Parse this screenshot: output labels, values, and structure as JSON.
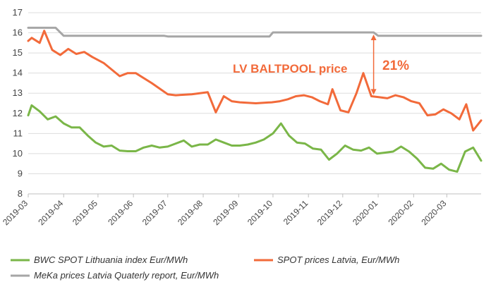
{
  "chart_data": {
    "type": "line",
    "title": "",
    "xlabel": "",
    "ylabel": "",
    "ylim": [
      8,
      17
    ],
    "yticks": [
      "8",
      "9",
      "10",
      "11",
      "12",
      "13",
      "14",
      "15",
      "16",
      "17"
    ],
    "xticks": [
      "2019-03",
      "2019-04",
      "2019-05",
      "2019-06",
      "2019-07",
      "2019-08",
      "2019-09",
      "2019-10",
      "2019-11",
      "2019-12",
      "2020-01",
      "2020-02",
      "2020-03"
    ],
    "xlim": [
      "2019-03-01",
      "2020-03-31"
    ],
    "grid": "horizontal",
    "legend_placement": "bottom",
    "series": [
      {
        "name": "BWC SPOT Lithuania index Eur/MWh",
        "color": "#7ab648",
        "points": [
          [
            "2019-03-01",
            11.9
          ],
          [
            "2019-03-04",
            12.4
          ],
          [
            "2019-03-11",
            12.1
          ],
          [
            "2019-03-18",
            11.7
          ],
          [
            "2019-03-25",
            11.85
          ],
          [
            "2019-04-01",
            11.5
          ],
          [
            "2019-04-08",
            11.3
          ],
          [
            "2019-04-15",
            11.3
          ],
          [
            "2019-04-22",
            10.9
          ],
          [
            "2019-04-29",
            10.55
          ],
          [
            "2019-05-06",
            10.35
          ],
          [
            "2019-05-13",
            10.4
          ],
          [
            "2019-05-20",
            10.15
          ],
          [
            "2019-05-27",
            10.12
          ],
          [
            "2019-06-03",
            10.12
          ],
          [
            "2019-06-10",
            10.3
          ],
          [
            "2019-06-17",
            10.4
          ],
          [
            "2019-06-24",
            10.3
          ],
          [
            "2019-07-01",
            10.35
          ],
          [
            "2019-07-08",
            10.5
          ],
          [
            "2019-07-15",
            10.65
          ],
          [
            "2019-07-22",
            10.35
          ],
          [
            "2019-07-29",
            10.45
          ],
          [
            "2019-08-05",
            10.45
          ],
          [
            "2019-08-12",
            10.7
          ],
          [
            "2019-08-19",
            10.55
          ],
          [
            "2019-08-26",
            10.4
          ],
          [
            "2019-09-02",
            10.4
          ],
          [
            "2019-09-09",
            10.45
          ],
          [
            "2019-09-16",
            10.55
          ],
          [
            "2019-09-23",
            10.7
          ],
          [
            "2019-10-01",
            11.0
          ],
          [
            "2019-10-08",
            11.5
          ],
          [
            "2019-10-15",
            10.9
          ],
          [
            "2019-10-22",
            10.55
          ],
          [
            "2019-10-29",
            10.5
          ],
          [
            "2019-11-05",
            10.25
          ],
          [
            "2019-11-12",
            10.2
          ],
          [
            "2019-11-19",
            9.7
          ],
          [
            "2019-11-26",
            10.0
          ],
          [
            "2019-12-03",
            10.4
          ],
          [
            "2019-12-10",
            10.2
          ],
          [
            "2019-12-17",
            10.15
          ],
          [
            "2019-12-24",
            10.3
          ],
          [
            "2019-12-31",
            10.0
          ],
          [
            "2020-01-07",
            10.05
          ],
          [
            "2020-01-14",
            10.1
          ],
          [
            "2020-01-21",
            10.35
          ],
          [
            "2020-01-28",
            10.1
          ],
          [
            "2020-02-04",
            9.75
          ],
          [
            "2020-02-11",
            9.3
          ],
          [
            "2020-02-18",
            9.25
          ],
          [
            "2020-02-25",
            9.5
          ],
          [
            "2020-03-03",
            9.2
          ],
          [
            "2020-03-10",
            9.1
          ],
          [
            "2020-03-17",
            10.1
          ],
          [
            "2020-03-24",
            10.3
          ],
          [
            "2020-03-31",
            9.65
          ]
        ]
      },
      {
        "name": "SPOT prices Latvia, Eur/MWh",
        "color": "#f26a3a",
        "points": [
          [
            "2019-03-01",
            15.6
          ],
          [
            "2019-03-04",
            15.75
          ],
          [
            "2019-03-11",
            15.5
          ],
          [
            "2019-03-15",
            16.1
          ],
          [
            "2019-03-22",
            15.15
          ],
          [
            "2019-03-29",
            14.9
          ],
          [
            "2019-04-05",
            15.2
          ],
          [
            "2019-04-12",
            14.95
          ],
          [
            "2019-04-19",
            15.05
          ],
          [
            "2019-04-26",
            14.8
          ],
          [
            "2019-05-06",
            14.5
          ],
          [
            "2019-05-20",
            13.85
          ],
          [
            "2019-05-27",
            14.0
          ],
          [
            "2019-06-03",
            14.0
          ],
          [
            "2019-06-17",
            13.5
          ],
          [
            "2019-07-01",
            12.95
          ],
          [
            "2019-07-08",
            12.9
          ],
          [
            "2019-07-22",
            12.95
          ],
          [
            "2019-08-05",
            13.05
          ],
          [
            "2019-08-12",
            12.05
          ],
          [
            "2019-08-19",
            12.85
          ],
          [
            "2019-08-26",
            12.6
          ],
          [
            "2019-09-02",
            12.55
          ],
          [
            "2019-09-16",
            12.5
          ],
          [
            "2019-09-30",
            12.55
          ],
          [
            "2019-10-07",
            12.6
          ],
          [
            "2019-10-14",
            12.7
          ],
          [
            "2019-10-21",
            12.85
          ],
          [
            "2019-10-28",
            12.9
          ],
          [
            "2019-11-04",
            12.8
          ],
          [
            "2019-11-11",
            12.6
          ],
          [
            "2019-11-18",
            12.45
          ],
          [
            "2019-11-22",
            13.2
          ],
          [
            "2019-11-29",
            12.15
          ],
          [
            "2019-12-06",
            12.05
          ],
          [
            "2019-12-13",
            13.0
          ],
          [
            "2019-12-19",
            14.0
          ],
          [
            "2019-12-26",
            12.85
          ],
          [
            "2020-01-02",
            12.8
          ],
          [
            "2020-01-09",
            12.75
          ],
          [
            "2020-01-16",
            12.9
          ],
          [
            "2020-01-23",
            12.8
          ],
          [
            "2020-01-30",
            12.6
          ],
          [
            "2020-02-06",
            12.5
          ],
          [
            "2020-02-13",
            11.9
          ],
          [
            "2020-02-20",
            11.95
          ],
          [
            "2020-02-27",
            12.2
          ],
          [
            "2020-03-05",
            12.0
          ],
          [
            "2020-03-12",
            11.7
          ],
          [
            "2020-03-18",
            12.45
          ],
          [
            "2020-03-24",
            11.15
          ],
          [
            "2020-03-31",
            11.65
          ]
        ]
      },
      {
        "name": "MeKa prices Latvia Quaterly report, Eur/MWh",
        "color": "#a6a6a6",
        "points": [
          [
            "2019-03-01",
            16.25
          ],
          [
            "2019-03-25",
            16.25
          ],
          [
            "2019-04-01",
            15.85
          ],
          [
            "2019-06-28",
            15.85
          ],
          [
            "2019-07-01",
            15.82
          ],
          [
            "2019-09-28",
            15.82
          ],
          [
            "2019-10-01",
            16.02
          ],
          [
            "2019-12-28",
            16.02
          ],
          [
            "2020-01-01",
            15.85
          ],
          [
            "2020-03-31",
            15.85
          ]
        ]
      }
    ],
    "annotations": [
      {
        "text": "LV BALTPOOL price",
        "color": "#f26a3a"
      },
      {
        "text": "21%",
        "color": "#f26a3a",
        "arrow_date": "2019-12-28",
        "arrow_from": 16.02,
        "arrow_to": 12.82
      }
    ]
  }
}
